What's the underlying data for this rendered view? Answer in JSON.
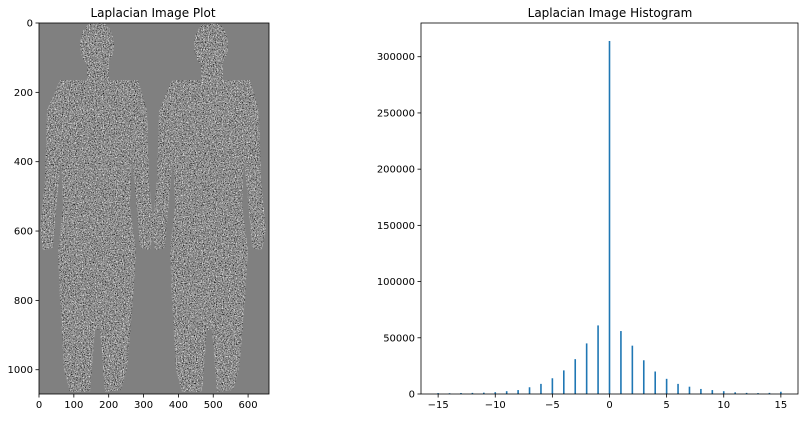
{
  "chart_data": [
    {
      "type": "heatmap",
      "title": "Laplacian Image Plot",
      "xlabel": "",
      "ylabel": "",
      "xlim": [
        0,
        660
      ],
      "ylim": [
        1070,
        0
      ],
      "x_ticks": [
        "0",
        "100",
        "200",
        "300",
        "400",
        "500",
        "600"
      ],
      "y_ticks": [
        "0",
        "200",
        "400",
        "600",
        "800",
        "1000"
      ],
      "colormap": "gray",
      "background_value_color": "#808080",
      "description_of_content": "Laplacian-filtered grayscale image of two standing human figures (front and back body scans) on a uniform gray background"
    },
    {
      "type": "bar",
      "title": "Laplacian Image Histogram",
      "xlabel": "",
      "ylabel": "",
      "xlim": [
        -16.5,
        16.5
      ],
      "ylim": [
        0,
        330000
      ],
      "x_ticks": [
        "−15",
        "−10",
        "−5",
        "0",
        "5",
        "10",
        "15"
      ],
      "y_ticks": [
        "0",
        "50000",
        "100000",
        "150000",
        "200000",
        "250000",
        "300000"
      ],
      "color": "#1f77b4",
      "categories": [
        -15,
        -14,
        -13,
        -12,
        -11,
        -10,
        -9,
        -8,
        -7,
        -6,
        -5,
        -4,
        -3,
        -2,
        -1,
        0,
        1,
        2,
        3,
        4,
        5,
        6,
        7,
        8,
        9,
        10,
        11,
        12,
        13,
        14,
        15
      ],
      "values": [
        800,
        700,
        900,
        1000,
        1200,
        1600,
        2500,
        3500,
        6000,
        9000,
        14000,
        21000,
        31000,
        45000,
        61000,
        314000,
        56000,
        43000,
        30000,
        20000,
        13500,
        9000,
        6500,
        4500,
        3500,
        2500,
        1500,
        1000,
        800,
        1000,
        2000
      ]
    }
  ]
}
